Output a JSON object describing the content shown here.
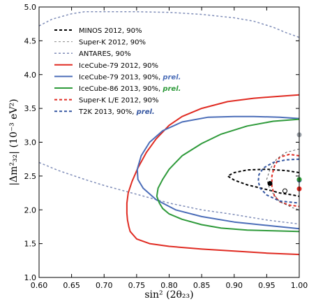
{
  "chart_data": {
    "type": "line",
    "xlabel": "sin² (2θ₂₃)",
    "ylabel": "|Δm²₃₂| (10⁻³ eV²)",
    "xlim": [
      0.6,
      1.0
    ],
    "ylim": [
      1.0,
      5.0
    ],
    "xticks": [
      "0.60",
      "0.65",
      "0.70",
      "0.75",
      "0.80",
      "0.85",
      "0.90",
      "0.95",
      "1.00"
    ],
    "yticks": [
      "1.0",
      "1.5",
      "2.0",
      "2.5",
      "3.0",
      "3.5",
      "4.0",
      "4.5",
      "5.0"
    ],
    "grid": false,
    "legend_position": "top-left",
    "legend": [
      {
        "text": "MINOS 2012, 90%",
        "prel": "",
        "color": "#000000",
        "dash": "4,3",
        "width": 2
      },
      {
        "text": "Super-K 2012, 90%",
        "prel": "",
        "color": "#8a8a8a",
        "dash": "3,3",
        "width": 1
      },
      {
        "text": "ANTARES, 90%",
        "prel": "",
        "color": "#7f8db8",
        "dash": "3,3",
        "width": 1.5
      },
      {
        "text": "IceCube-79 2012, 90%",
        "prel": "",
        "color": "#e02b22",
        "dash": "",
        "width": 2
      },
      {
        "text": "IceCube-79 2013, 90%, ",
        "prel": "prel.",
        "color": "#4b6db8",
        "dash": "",
        "width": 2
      },
      {
        "text": "IceCube-86 2013, 90%, ",
        "prel": "prel.",
        "color": "#2e9a3a",
        "dash": "",
        "width": 2
      },
      {
        "text": "Super-K L/E 2012, 90%",
        "prel": "",
        "color": "#e02b22",
        "dash": "4,3",
        "width": 2
      },
      {
        "text": "T2K 2013, 90%, ",
        "prel": "prel.",
        "color": "#3355a0",
        "dash": "4,3",
        "width": 2
      }
    ],
    "series": [
      {
        "name": "ANTARES, 90%",
        "color": "#7f8db8",
        "dash": "3,3",
        "width": 1.5,
        "x": [
          0.6,
          0.62,
          0.65,
          0.67,
          0.7,
          0.75,
          0.8,
          0.85,
          0.9,
          0.93,
          0.96,
          0.98,
          1.0
        ],
        "y": [
          4.72,
          4.82,
          4.9,
          4.93,
          4.93,
          4.93,
          4.92,
          4.89,
          4.84,
          4.79,
          4.7,
          4.62,
          4.55
        ]
      },
      {
        "name": "ANTARES, 90% (lower)",
        "color": "#7f8db8",
        "dash": "3,3",
        "width": 1.5,
        "x": [
          0.6,
          0.63,
          0.67,
          0.7,
          0.75,
          0.8,
          0.85,
          0.9,
          0.95,
          1.0
        ],
        "y": [
          2.7,
          2.58,
          2.45,
          2.36,
          2.23,
          2.1,
          2.0,
          1.93,
          1.85,
          1.79
        ]
      },
      {
        "name": "IceCube-79 2012, 90%",
        "color": "#e02b22",
        "dash": "",
        "width": 2,
        "x": [
          1.0,
          0.97,
          0.93,
          0.89,
          0.85,
          0.82,
          0.8,
          0.78,
          0.765,
          0.752,
          0.743,
          0.737,
          0.735,
          0.735,
          0.736,
          0.738,
          0.74,
          0.75,
          0.77,
          0.8,
          0.85,
          0.9,
          0.95,
          1.0
        ],
        "y": [
          3.7,
          3.68,
          3.65,
          3.6,
          3.5,
          3.38,
          3.25,
          3.05,
          2.85,
          2.62,
          2.42,
          2.25,
          2.1,
          1.95,
          1.85,
          1.75,
          1.68,
          1.57,
          1.5,
          1.46,
          1.42,
          1.39,
          1.36,
          1.34
        ]
      },
      {
        "name": "IceCube-79 2013, 90%, prel.",
        "color": "#4b6db8",
        "dash": "",
        "width": 2,
        "x": [
          1.0,
          0.97,
          0.93,
          0.9,
          0.86,
          0.82,
          0.79,
          0.77,
          0.757,
          0.751,
          0.752,
          0.76,
          0.78,
          0.81,
          0.85,
          0.9,
          0.95,
          1.0
        ],
        "y": [
          3.35,
          3.37,
          3.38,
          3.38,
          3.37,
          3.3,
          3.17,
          3.0,
          2.8,
          2.6,
          2.45,
          2.32,
          2.15,
          2.0,
          1.9,
          1.82,
          1.77,
          1.72
        ]
      },
      {
        "name": "IceCube-86 2013, 90%, prel.",
        "color": "#2e9a3a",
        "dash": "",
        "width": 2,
        "x": [
          1.0,
          0.96,
          0.92,
          0.88,
          0.85,
          0.82,
          0.8,
          0.79,
          0.783,
          0.781,
          0.785,
          0.79,
          0.8,
          0.82,
          0.85,
          0.88,
          0.92,
          0.96,
          1.0
        ],
        "y": [
          3.34,
          3.31,
          3.24,
          3.12,
          2.98,
          2.8,
          2.6,
          2.45,
          2.32,
          2.2,
          2.1,
          2.02,
          1.94,
          1.86,
          1.78,
          1.73,
          1.7,
          1.69,
          1.68
        ]
      },
      {
        "name": "MINOS 2012, 90%",
        "color": "#000000",
        "dash": "4,3",
        "width": 2,
        "x": [
          1.0,
          0.98,
          0.95,
          0.92,
          0.9,
          0.89,
          0.9,
          0.92,
          0.95,
          0.97,
          0.99,
          1.0
        ],
        "y": [
          2.55,
          2.58,
          2.6,
          2.59,
          2.55,
          2.5,
          2.44,
          2.37,
          2.3,
          2.25,
          2.22,
          2.2
        ]
      },
      {
        "name": "Super-K L/E 2012, 90%",
        "color": "#e02b22",
        "dash": "4,3",
        "width": 2,
        "x": [
          1.0,
          0.985,
          0.97,
          0.962,
          0.958,
          0.958,
          0.962,
          0.97,
          0.985,
          1.0
        ],
        "y": [
          2.8,
          2.82,
          2.78,
          2.65,
          2.5,
          2.35,
          2.2,
          2.12,
          2.07,
          2.05
        ]
      },
      {
        "name": "T2K 2013, 90%, prel.",
        "color": "#3355a0",
        "dash": "4,3",
        "width": 2,
        "x": [
          1.0,
          0.98,
          0.96,
          0.945,
          0.938,
          0.937,
          0.94,
          0.95,
          0.97,
          1.0
        ],
        "y": [
          2.75,
          2.74,
          2.7,
          2.62,
          2.52,
          2.42,
          2.32,
          2.22,
          2.13,
          2.1
        ]
      },
      {
        "name": "Super-K 2012, 90%",
        "color": "#555555",
        "dash": "3,3",
        "width": 1,
        "x": [
          1.0,
          0.98,
          0.965,
          0.955,
          0.95,
          0.955,
          0.97,
          0.99,
          1.0
        ],
        "y": [
          2.9,
          2.85,
          2.75,
          2.6,
          2.45,
          2.3,
          2.12,
          2.03,
          2.0
        ]
      }
    ],
    "best_fits": [
      {
        "name": "MINOS 2012, 90%",
        "x": 0.955,
        "y": 2.39,
        "color": "#000000",
        "fill": true
      },
      {
        "name": "Super-K 2012, 90%",
        "x": 0.978,
        "y": 2.28,
        "color": "#000000",
        "fill": false
      },
      {
        "name": "IceCube-79 2013, 90%, prel.",
        "x": 1.0,
        "y": 3.11,
        "color": "#9aa0a8",
        "fill": true
      },
      {
        "name": "T2K 2013, 90%, prel.",
        "x": 1.0,
        "y": 2.44,
        "color": "#3355a0",
        "fill": true
      },
      {
        "name": "IceCube-86 2013, 90%, prel.",
        "x": 1.0,
        "y": 2.45,
        "color": "#2e9a3a",
        "fill": true
      },
      {
        "name": "Super-K L/E 2012, 90%",
        "x": 1.0,
        "y": 2.31,
        "color": "#e02b22",
        "fill": true
      }
    ]
  }
}
